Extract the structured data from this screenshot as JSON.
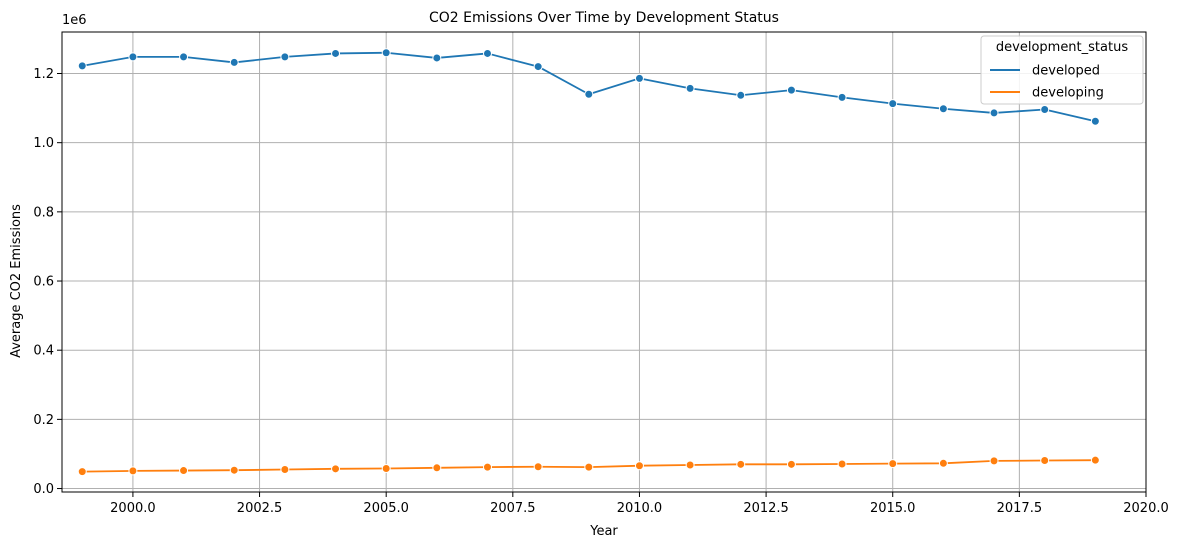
{
  "chart_data": {
    "type": "line",
    "title": "CO2 Emissions Over Time by Development Status",
    "xlabel": "Year",
    "ylabel": "Average CO2 Emissions",
    "y_offset_label": "1e6",
    "xlim": [
      1998.6,
      2020.0
    ],
    "ylim": [
      -0.01,
      1.32
    ],
    "xticks": [
      2000.0,
      2002.5,
      2005.0,
      2007.5,
      2010.0,
      2012.5,
      2015.0,
      2017.5,
      2020.0
    ],
    "xtick_labels": [
      "2000.0",
      "2002.5",
      "2005.0",
      "2007.5",
      "2010.0",
      "2012.5",
      "2015.0",
      "2017.5",
      "2020.0"
    ],
    "yticks": [
      0.0,
      0.2,
      0.4,
      0.6,
      0.8,
      1.0,
      1.2
    ],
    "ytick_labels": [
      "0.0",
      "0.2",
      "0.4",
      "0.6",
      "0.8",
      "1.0",
      "1.2"
    ],
    "grid": true,
    "legend": {
      "title": "development_status",
      "placement": "top-right"
    },
    "x": [
      1999,
      2000,
      2001,
      2002,
      2003,
      2004,
      2005,
      2006,
      2007,
      2008,
      2009,
      2010,
      2011,
      2012,
      2013,
      2014,
      2015,
      2016,
      2017,
      2018,
      2019
    ],
    "series": [
      {
        "name": "developed",
        "color": "#1f77b4",
        "values": [
          1.222,
          1.248,
          1.248,
          1.232,
          1.248,
          1.258,
          1.26,
          1.245,
          1.258,
          1.22,
          1.14,
          1.186,
          1.157,
          1.137,
          1.152,
          1.131,
          1.113,
          1.098,
          1.086,
          1.096,
          1.062
        ]
      },
      {
        "name": "developing",
        "color": "#ff7f0e",
        "values": [
          0.049,
          0.051,
          0.052,
          0.053,
          0.055,
          0.057,
          0.058,
          0.06,
          0.062,
          0.063,
          0.062,
          0.066,
          0.068,
          0.07,
          0.07,
          0.071,
          0.072,
          0.073,
          0.08,
          0.081,
          0.082
        ]
      }
    ]
  }
}
